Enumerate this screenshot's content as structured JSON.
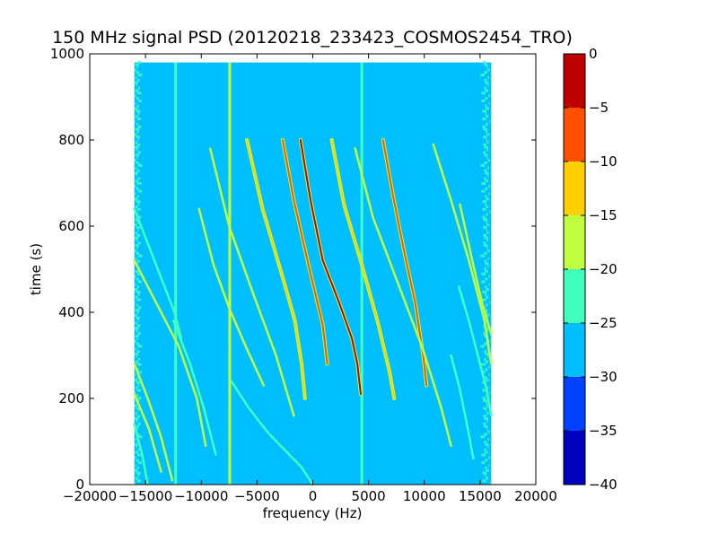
{
  "chart_data": {
    "type": "heatmap",
    "title": "150 MHz signal PSD (20120218_233423_COSMOS2454_TRO)",
    "xlabel": "frequency (Hz)",
    "ylabel": "time (s)",
    "xlim": [
      -20000,
      20000
    ],
    "ylim": [
      0,
      1000
    ],
    "xticks": [
      -20000,
      -15000,
      -10000,
      -5000,
      0,
      5000,
      10000,
      15000,
      20000
    ],
    "xtick_labels": [
      "−20000",
      "−15000",
      "−10000",
      "−5000",
      "0",
      "5000",
      "10000",
      "15000",
      "20000"
    ],
    "yticks": [
      0,
      200,
      400,
      600,
      800,
      1000
    ],
    "ytick_labels": [
      "0",
      "200",
      "400",
      "600",
      "800",
      "1000"
    ],
    "grid": false,
    "data_extent": {
      "x": [
        -16000,
        16000
      ],
      "y": [
        0,
        980
      ]
    },
    "background_level": -27.5,
    "colorbar": {
      "levels": [
        -40,
        -35,
        -30,
        -25,
        -20,
        -15,
        -10,
        -5,
        0
      ],
      "tick_labels": [
        "−40",
        "−35",
        "−30",
        "−25",
        "−20",
        "−15",
        "−10",
        "−5",
        "0"
      ],
      "colors": [
        "#0000bf",
        "#0040ff",
        "#00bfff",
        "#40ffbf",
        "#bfff40",
        "#ffd000",
        "#ff5000",
        "#bf0000"
      ]
    },
    "vertical_lines": [
      {
        "f": -12300,
        "t": [
          0,
          980
        ],
        "level": -22.5
      },
      {
        "f": -7450,
        "t": [
          0,
          980
        ],
        "level": -17.5
      },
      {
        "f": 4400,
        "t": [
          0,
          980
        ],
        "level": -22.5
      }
    ],
    "doppler_tracks": [
      {
        "f": [
          -1100,
          -200,
          900,
          2400,
          3500,
          4000,
          4300
        ],
        "t": [
          800,
          660,
          520,
          420,
          340,
          280,
          210
        ],
        "level": -2.5
      },
      {
        "f": [
          -2700,
          -1700,
          -300,
          900,
          1300
        ],
        "t": [
          800,
          660,
          500,
          370,
          280
        ],
        "level": -7.5
      },
      {
        "f": [
          -5900,
          -4500,
          -2800,
          -1600,
          -1000,
          -700
        ],
        "t": [
          800,
          640,
          490,
          380,
          280,
          200
        ],
        "level": -12.5
      },
      {
        "f": [
          1700,
          2800,
          4400,
          5800,
          6900,
          7300
        ],
        "t": [
          800,
          650,
          510,
          380,
          260,
          200
        ],
        "level": -12.5
      },
      {
        "f": [
          6300,
          7200,
          8200,
          9200,
          9900,
          10200
        ],
        "t": [
          800,
          670,
          540,
          420,
          300,
          230
        ],
        "level": -7.5
      },
      {
        "f": [
          -9200,
          -7500,
          -5300,
          -3300,
          -1700
        ],
        "t": [
          780,
          600,
          440,
          300,
          160
        ],
        "level": -17.5
      },
      {
        "f": [
          3800,
          5400,
          7600,
          9800,
          11500,
          12400
        ],
        "t": [
          780,
          620,
          470,
          320,
          180,
          90
        ],
        "level": -17.5
      },
      {
        "f": [
          -10200,
          -8900,
          -7500,
          -6000,
          -4400
        ],
        "t": [
          640,
          510,
          410,
          320,
          230
        ],
        "level": -17.5
      },
      {
        "f": [
          -16000,
          -14000,
          -12000,
          -10400,
          -9600
        ],
        "t": [
          520,
          420,
          320,
          200,
          90
        ],
        "level": -17.5
      },
      {
        "f": [
          -16000,
          -14800,
          -13600,
          -12600
        ],
        "t": [
          280,
          200,
          110,
          10
        ],
        "level": -17.5
      },
      {
        "f": [
          -16000,
          -14700,
          -13600
        ],
        "t": [
          210,
          130,
          30
        ],
        "level": -17.5
      },
      {
        "f": [
          -16000,
          -15300,
          -14800
        ],
        "t": [
          140,
          70,
          0
        ],
        "level": -22.5
      },
      {
        "f": [
          -16000,
          -14800,
          -13600,
          -12400,
          -11800
        ],
        "t": [
          640,
          560,
          480,
          400,
          340
        ],
        "level": -22.5
      },
      {
        "f": [
          -7300,
          -5800,
          -4000,
          -2500,
          -1000,
          0
        ],
        "t": [
          240,
          180,
          120,
          80,
          40,
          0
        ],
        "level": -22.5
      },
      {
        "f": [
          -12500,
          -11000,
          -9800,
          -8700
        ],
        "t": [
          380,
          280,
          180,
          70
        ],
        "level": -22.5
      },
      {
        "f": [
          10800,
          12400,
          14000,
          15400,
          16000
        ],
        "t": [
          790,
          660,
          520,
          380,
          280
        ],
        "level": -17.5
      },
      {
        "f": [
          13200,
          14300,
          15200,
          16000
        ],
        "t": [
          650,
          520,
          420,
          350
        ],
        "level": -17.5
      },
      {
        "f": [
          13100,
          14000,
          14800,
          15600,
          16000
        ],
        "t": [
          460,
          380,
          300,
          220,
          160
        ],
        "level": -22.5
      },
      {
        "f": [
          12400,
          13200,
          13900,
          14400
        ],
        "t": [
          300,
          220,
          130,
          60
        ],
        "level": -22.5
      }
    ]
  }
}
